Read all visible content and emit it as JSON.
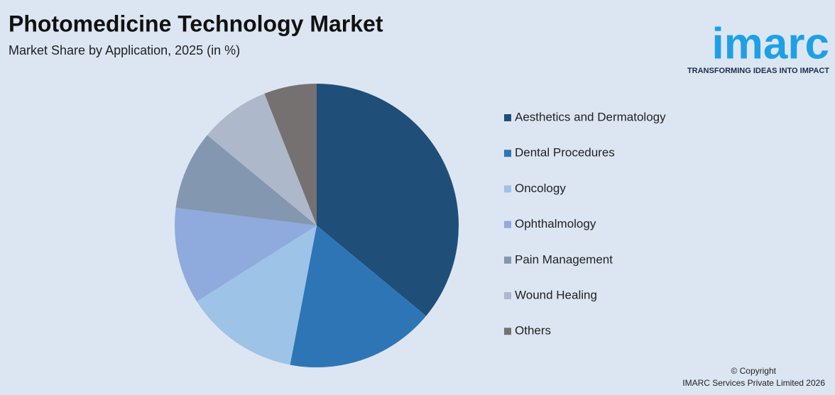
{
  "chart_data": {
    "type": "pie",
    "title": "Photomedicine Technology Market",
    "subtitle": "Market Share by Application, 2025 (in %)",
    "categories": [
      "Aesthetics and Dermatology",
      "Dental Procedures",
      "Oncology",
      "Ophthalmology",
      "Pain Management",
      "Wound Healing",
      "Others"
    ],
    "values": [
      36,
      17,
      13,
      11,
      9,
      8,
      6
    ],
    "colors": [
      "#1f4e79",
      "#2e75b6",
      "#9dc3e6",
      "#8faadc",
      "#8497b0",
      "#adb9ca",
      "#767171"
    ]
  },
  "logo": {
    "name": "imarc",
    "tagline": "TRANSFORMING IDEAS INTO IMPACT"
  },
  "copyright": [
    "© Copyright",
    "IMARC Services Private Limited 2026"
  ]
}
